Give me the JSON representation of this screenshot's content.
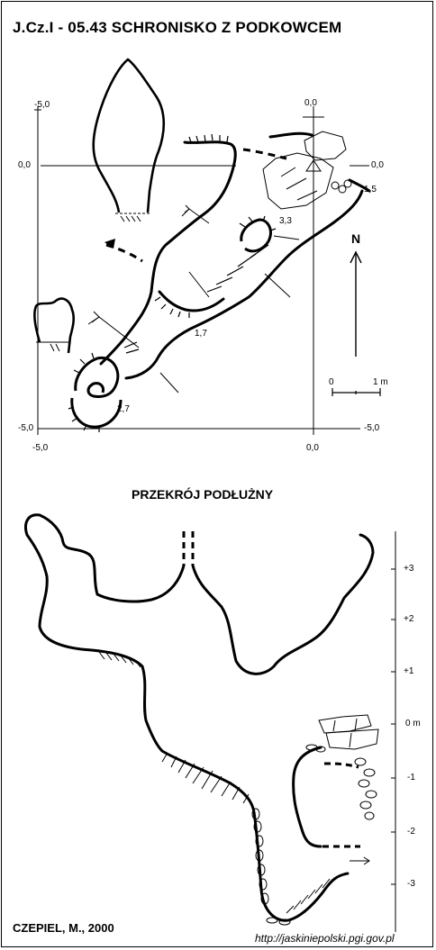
{
  "title": "J.Cz.I - 05.43  SCHRONISKO Z PODKOWCEM",
  "section_title": "PRZEKRÓJ PODŁUŻNY",
  "author": "CZEPIEL, M., 2000",
  "source_url": "http://jaskiniepolski.pgi.gov.pl",
  "plan": {
    "grid_labels": {
      "left_top": "-5,0",
      "left_mid": "0,0",
      "left_bottom": "-5,0",
      "top_right": "0,0",
      "right_mid": "0,0",
      "right_bottom": "-5,0",
      "bottom_left": "-5,0",
      "bottom_right": "0,0"
    },
    "depth_labels": [
      "3,3",
      "1,5",
      "1,7",
      "2,7"
    ],
    "north_label": "N",
    "scale_start": "0",
    "scale_end": "1 m"
  },
  "section": {
    "depth_scale": [
      "+3",
      "+2",
      "+1",
      "0 m",
      "-1",
      "-2",
      "-3"
    ]
  },
  "colors": {
    "ink": "#000000",
    "paper": "#ffffff"
  }
}
